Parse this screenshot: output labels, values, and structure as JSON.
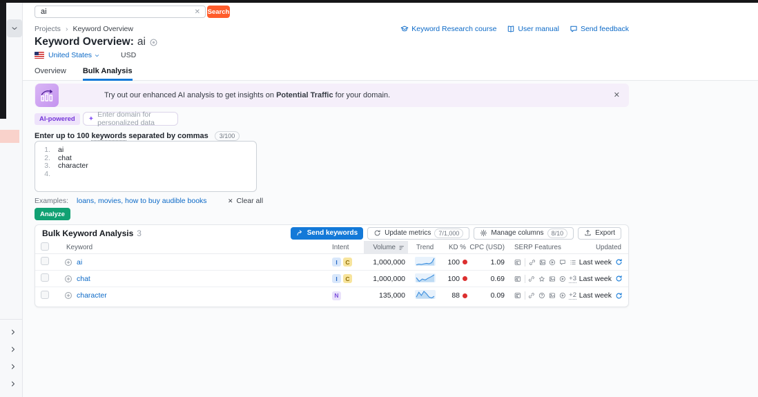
{
  "topbar": {
    "search_value": "ai",
    "search_button": "Search"
  },
  "breadcrumb": {
    "items": [
      "Projects",
      "Keyword Overview"
    ]
  },
  "header_links": [
    {
      "icon": "graduation-cap",
      "label": "Keyword Research course"
    },
    {
      "icon": "book",
      "label": "User manual"
    },
    {
      "icon": "feedback-bubble",
      "label": "Send feedback"
    }
  ],
  "title": {
    "label": "Keyword Overview:",
    "keyword": "ai"
  },
  "filters": {
    "country": "United States",
    "currency": "USD"
  },
  "tabs": [
    {
      "label": "Overview"
    },
    {
      "label": "Bulk Analysis"
    }
  ],
  "banner": {
    "text_before": "Try out our enhanced AI analysis to get insights on ",
    "text_bold": "Potential Traffic",
    "text_after": " for your domain."
  },
  "ai_bar": {
    "badge": "AI-powered",
    "sparkle": "✦",
    "placeholder": "Enter domain for personalized data"
  },
  "entry": {
    "label_prefix": "Enter up to 100",
    "label_underlined": "keywords",
    "label_suffix": "separated by commas",
    "counter": "3/100",
    "lines": [
      {
        "n": "1.",
        "text": "ai"
      },
      {
        "n": "2.",
        "text": "chat"
      },
      {
        "n": "3.",
        "text": "character"
      },
      {
        "n": "4.",
        "text": ""
      }
    ],
    "examples_label": "Examples:",
    "examples_links": "loans, movies, how to buy audible books",
    "clear_all": "Clear all",
    "analyze": "Analyze"
  },
  "panel": {
    "title": "Bulk Keyword Analysis",
    "count": "3",
    "buttons": {
      "send": "Send keywords",
      "update": "Update metrics",
      "update_badge": "7/1,000",
      "manage": "Manage columns",
      "manage_badge": "8/10",
      "export": "Export"
    },
    "columns": [
      "Keyword",
      "Intent",
      "Volume",
      "Trend",
      "KD %",
      "CPC (USD)",
      "SERP Features",
      "Updated"
    ],
    "rows": [
      {
        "keyword": "ai",
        "intents": [
          {
            "l": "I",
            "type": "informational"
          },
          {
            "l": "C",
            "type": "commercial"
          }
        ],
        "volume": "1,000,000",
        "trend": [
          4,
          4.5,
          4.2,
          4.7,
          5,
          4.7,
          5.5,
          8.6
        ],
        "kd": "100",
        "kd_color": "#dc2f2f",
        "cpc": "1.09",
        "serp": [
          "featured-snippet",
          "link",
          "image",
          "video",
          "comment",
          "list"
        ],
        "serp_more": "",
        "updated": "Last week"
      },
      {
        "keyword": "chat",
        "intents": [
          {
            "l": "I",
            "type": "informational"
          },
          {
            "l": "C",
            "type": "commercial"
          }
        ],
        "volume": "1,000,000",
        "trend": [
          7,
          3,
          5.5,
          4.5,
          6.5,
          8,
          10
        ],
        "kd": "100",
        "kd_color": "#dc2f2f",
        "cpc": "0.69",
        "serp": [
          "featured-snippet",
          "link",
          "star",
          "image",
          "video"
        ],
        "serp_more": "+3",
        "updated": "Last week"
      },
      {
        "keyword": "character",
        "intents": [
          {
            "l": "N",
            "type": "navigational"
          }
        ],
        "volume": "135,000",
        "trend": [
          4,
          7,
          5,
          7.5,
          6,
          4,
          3.5,
          4.5
        ],
        "kd": "88",
        "kd_color": "#dc2f2f",
        "cpc": "0.09",
        "serp": [
          "featured-snippet",
          "link",
          "question",
          "image",
          "video"
        ],
        "serp_more": "+2",
        "updated": "Last week"
      }
    ]
  },
  "colors": {
    "accent_orange": "#ff5c2b",
    "accent_blue": "#1379d8",
    "link_blue": "#0b69c7",
    "accent_green": "#11a173",
    "kd_red": "#dc2f2f",
    "banner_purple": "#f5effa"
  }
}
